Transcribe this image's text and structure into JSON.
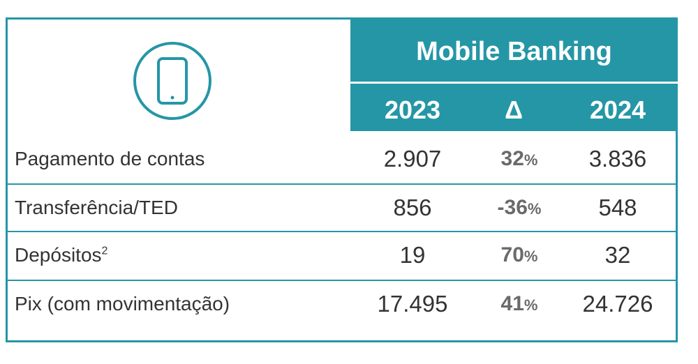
{
  "header": {
    "title": "Mobile Banking",
    "col_2023": "2023",
    "col_delta": "Δ",
    "col_2024": "2024",
    "icon": "smartphone-icon"
  },
  "colors": {
    "accent": "#2596a6",
    "text": "#333333",
    "delta_text": "#6a6a6a"
  },
  "rows": [
    {
      "label": "Pagamento de contas",
      "sup": "",
      "v2023": "2.907",
      "delta": "32",
      "delta_unit": "%",
      "v2024": "3.836"
    },
    {
      "label": "Transferência/TED",
      "sup": "",
      "v2023": "856",
      "delta": "-36",
      "delta_unit": "%",
      "v2024": "548"
    },
    {
      "label": "Depósitos",
      "sup": "2",
      "v2023": "19",
      "delta": "70",
      "delta_unit": "%",
      "v2024": "32"
    },
    {
      "label": "Pix (com movimentação)",
      "sup": "",
      "v2023": "17.495",
      "delta": "41",
      "delta_unit": "%",
      "v2024": "24.726"
    }
  ]
}
